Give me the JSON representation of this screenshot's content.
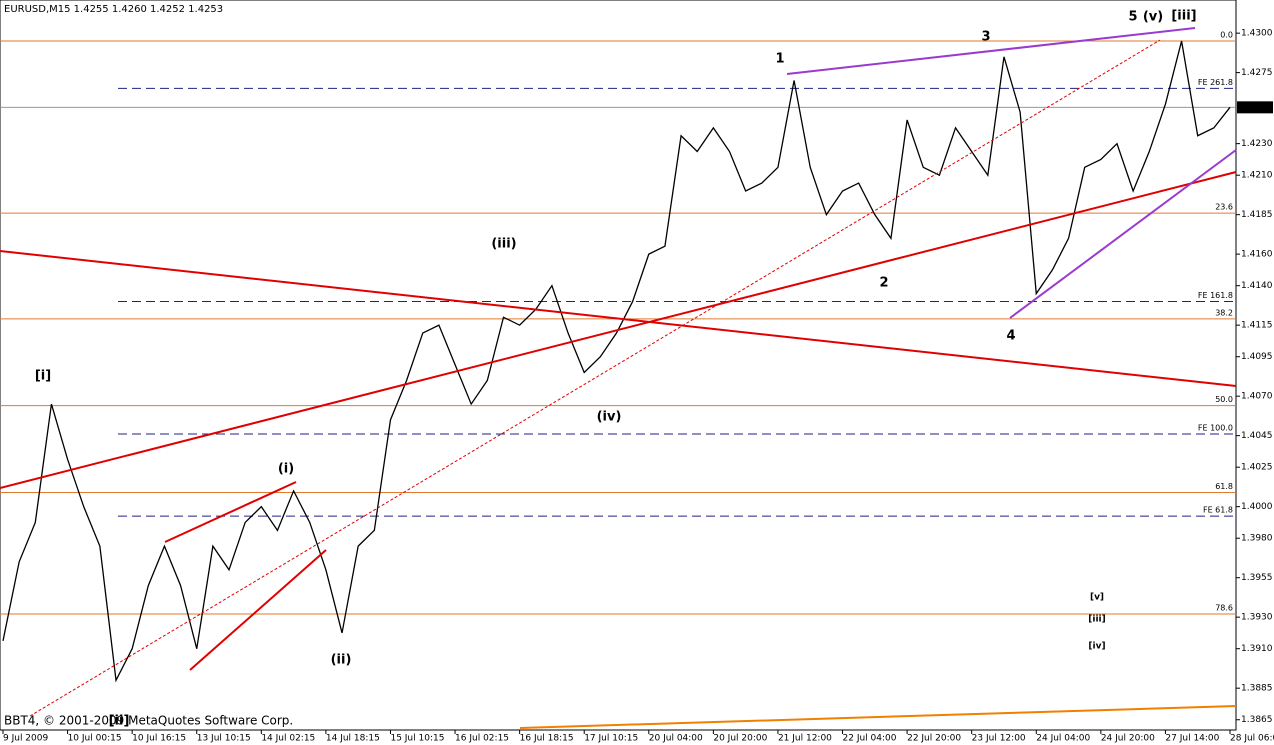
{
  "chart_data": {
    "type": "line",
    "title": "EURUSD,M15  1.4255 1.4260 1.4252 1.4253",
    "footer": "BBT4, © 2001-2009 MetaQuotes Software Corp.",
    "current_price": {
      "value": 1.4253,
      "label": "1.4253"
    },
    "categories": [
      "9 Jul 2009",
      null,
      null,
      null,
      "10 Jul 00:15",
      null,
      null,
      null,
      "10 Jul 16:15",
      null,
      null,
      null,
      "13 Jul 10:15",
      null,
      null,
      null,
      "14 Jul 02:15",
      null,
      null,
      null,
      "14 Jul 18:15",
      null,
      null,
      null,
      "15 Jul 10:15",
      null,
      null,
      null,
      "16 Jul 02:15",
      null,
      null,
      null,
      "16 Jul 18:15",
      null,
      null,
      null,
      "17 Jul 10:15",
      null,
      null,
      null,
      "20 Jul 04:00",
      null,
      null,
      null,
      "20 Jul 20:00",
      null,
      null,
      null,
      "21 Jul 12:00",
      null,
      null,
      null,
      "22 Jul 04:00",
      null,
      null,
      null,
      "22 Jul 20:00",
      null,
      null,
      null,
      "23 Jul 12:00",
      null,
      null,
      null,
      "24 Jul 04:00",
      null,
      null,
      null,
      "24 Jul 20:00",
      null,
      null,
      null,
      "27 Jul 14:00",
      null,
      null,
      null,
      "28 Jul 06:00"
    ],
    "series": [
      {
        "name": "EURUSD",
        "color": "#000000",
        "values": [
          1.3915,
          1.3965,
          1.399,
          1.4065,
          1.403,
          1.4,
          1.3975,
          1.389,
          1.391,
          1.395,
          1.3975,
          1.395,
          1.391,
          1.3975,
          1.396,
          1.399,
          1.4,
          1.3985,
          1.401,
          1.399,
          1.396,
          1.392,
          1.3975,
          1.3985,
          1.4055,
          1.408,
          1.411,
          1.4115,
          1.409,
          1.4065,
          1.408,
          1.412,
          1.4115,
          1.4125,
          1.414,
          1.411,
          1.4085,
          1.4095,
          1.411,
          1.413,
          1.416,
          1.4165,
          1.4235,
          1.4225,
          1.424,
          1.4225,
          1.42,
          1.4205,
          1.4215,
          1.427,
          1.4215,
          1.4185,
          1.42,
          1.4205,
          1.4185,
          1.417,
          1.4245,
          1.4215,
          1.421,
          1.424,
          1.4225,
          1.421,
          1.4285,
          1.425,
          1.4135,
          1.415,
          1.417,
          1.4215,
          1.422,
          1.423,
          1.42,
          1.4225,
          1.4255,
          1.4295,
          1.4235,
          1.424,
          1.4253
        ]
      }
    ],
    "ylim": [
      1.3849,
      1.4321
    ],
    "yticks": [
      {
        "value": 1.43,
        "label": "1.4300"
      },
      {
        "value": 1.4275,
        "label": "1.4275"
      },
      {
        "value": 1.423,
        "label": "1.4230"
      },
      {
        "value": 1.421,
        "label": "1.4210"
      },
      {
        "value": 1.4185,
        "label": "1.4185"
      },
      {
        "value": 1.416,
        "label": "1.4160"
      },
      {
        "value": 1.414,
        "label": "1.4140"
      },
      {
        "value": 1.4115,
        "label": "1.4115"
      },
      {
        "value": 1.4095,
        "label": "1.4095"
      },
      {
        "value": 1.407,
        "label": "1.4070"
      },
      {
        "value": 1.4045,
        "label": "1.4045"
      },
      {
        "value": 1.4025,
        "label": "1.4025"
      },
      {
        "value": 1.4,
        "label": "1.4000"
      },
      {
        "value": 1.398,
        "label": "1.3980"
      },
      {
        "value": 1.3955,
        "label": "1.3955"
      },
      {
        "value": 1.393,
        "label": "1.3930"
      },
      {
        "value": 1.391,
        "label": "1.3910"
      },
      {
        "value": 1.3885,
        "label": "1.3885"
      },
      {
        "value": 1.3865,
        "label": "1.3865"
      }
    ],
    "fib_levels": [
      {
        "label": "0.0",
        "value": 1.4295
      },
      {
        "label": "23.6",
        "value": 1.4186
      },
      {
        "label": "38.2",
        "value": 1.4119
      },
      {
        "label": "50.0",
        "value": 1.4064
      },
      {
        "label": "61.8",
        "value": 1.4009
      },
      {
        "label": "78.6",
        "value": 1.3932
      }
    ],
    "fe_levels": [
      {
        "label": "FE 261.8",
        "value": 1.4265
      },
      {
        "label": "FE 161.8",
        "value": 1.413
      },
      {
        "label": "FE 100.0",
        "value": 1.4046
      },
      {
        "label": "FE 61.8",
        "value": 1.3994
      }
    ],
    "annotations": [
      "[i]",
      "(i)",
      "(ii)",
      "(iii)",
      "(iv)",
      "5",
      "(v)",
      "[iii]",
      "1",
      "2",
      "3",
      "4",
      "[ii]",
      "[v]",
      "[iii]",
      "[iv]"
    ]
  }
}
